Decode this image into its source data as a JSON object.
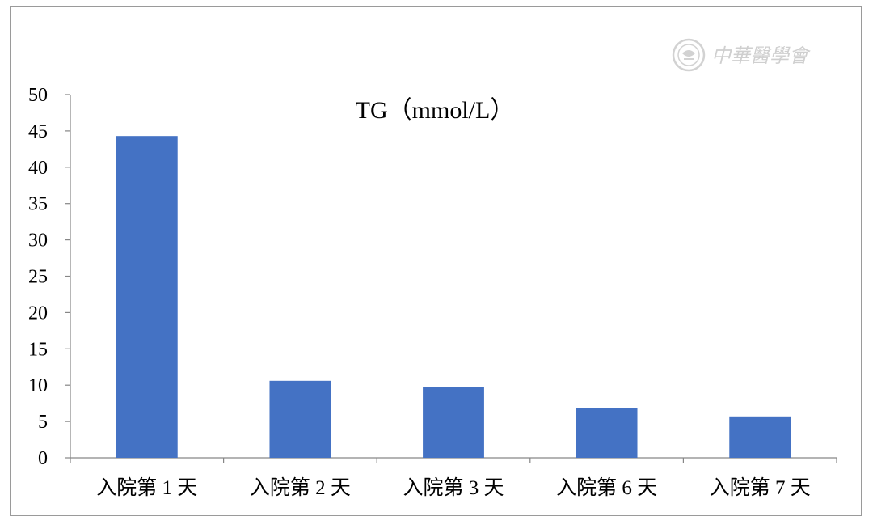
{
  "chart_data": {
    "type": "bar",
    "title": "TG（mmol/L）",
    "categories": [
      "入院第 1 天",
      "入院第 2 天",
      "入院第 3 天",
      "入院第 6 天",
      "入院第 7 天"
    ],
    "values": [
      44.3,
      10.6,
      9.7,
      6.8,
      5.7
    ],
    "ylim": [
      0,
      50
    ],
    "yticks": [
      0,
      5,
      10,
      15,
      20,
      25,
      30,
      35,
      40,
      45,
      50
    ],
    "xlabel": "",
    "ylabel": "",
    "grid": false,
    "legend": "none",
    "bar_color": "#4472C4"
  },
  "watermark": {
    "text": "中華醫學會",
    "color": "#cfcfcf",
    "icon": "seal-icon"
  }
}
